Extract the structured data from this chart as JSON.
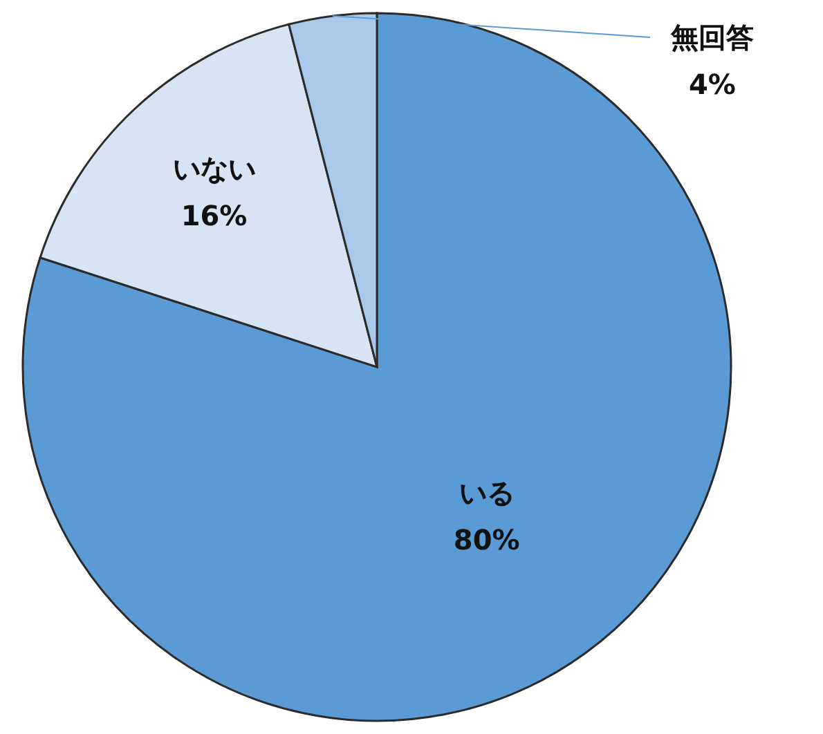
{
  "chart_data": {
    "type": "pie",
    "categories": [
      "いる",
      "いない",
      "無回答"
    ],
    "values": [
      80,
      16,
      4
    ],
    "value_labels": [
      "80%",
      "16%",
      "4%"
    ],
    "colors": [
      "#5b9bd5",
      "#d6e4f3",
      "#a9c8ea"
    ]
  }
}
